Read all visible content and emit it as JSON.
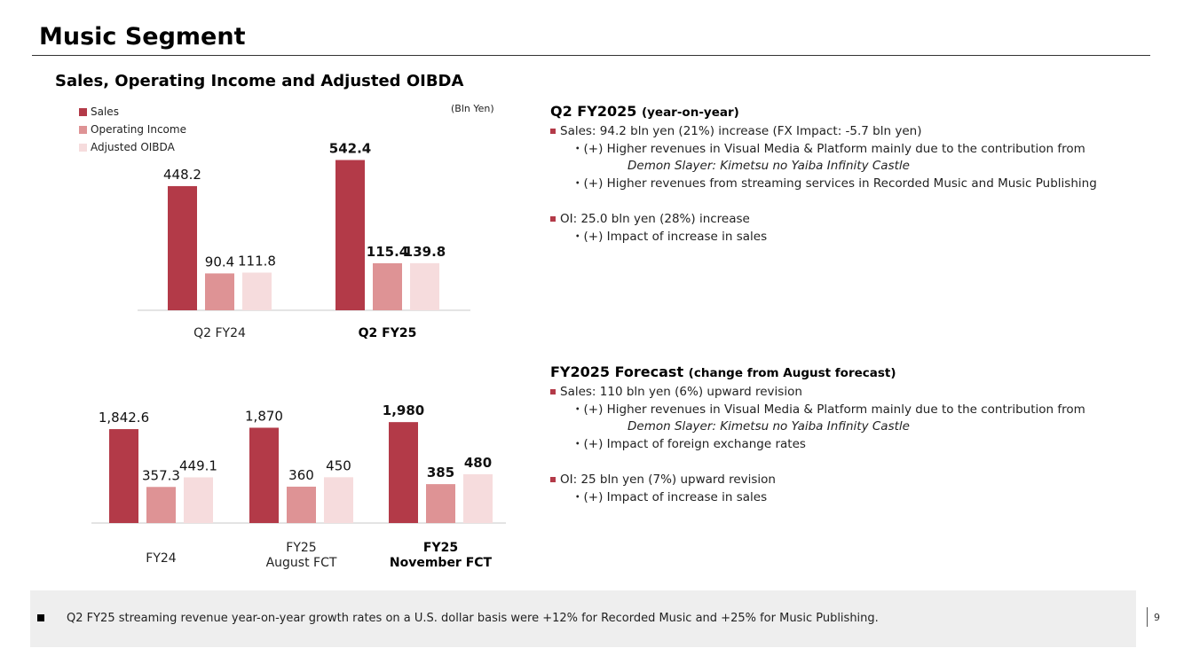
{
  "page": {
    "title": "Music Segment",
    "page_number": "9"
  },
  "chart_section": {
    "title": "Sales, Operating Income and Adjusted OIBDA",
    "unit": "(Bln Yen)",
    "legend": [
      "Sales",
      "Operating Income",
      "Adjusted OIBDA"
    ]
  },
  "chart_data": [
    {
      "type": "bar",
      "categories": [
        "Q2 FY24",
        "Q2 FY25"
      ],
      "series": [
        {
          "name": "Sales",
          "values": [
            448.2,
            542.4
          ],
          "labels": [
            "448.2",
            "542.4"
          ],
          "color": "#b33a48"
        },
        {
          "name": "Operating Income",
          "values": [
            90.4,
            115.4
          ],
          "labels": [
            "90.4",
            "115.4"
          ],
          "color": "#de9395"
        },
        {
          "name": "Adjusted OIBDA",
          "values": [
            111.8,
            139.8
          ],
          "labels": [
            "111.8",
            "139.8"
          ],
          "color": "#f6dcdd"
        }
      ],
      "highlight_category": "Q2 FY25"
    },
    {
      "type": "bar",
      "categories": [
        "FY24",
        "FY25\nAugust FCT",
        "FY25\nNovember FCT"
      ],
      "category_lines": [
        [
          "FY24"
        ],
        [
          "FY25",
          "August FCT"
        ],
        [
          "FY25",
          "November FCT"
        ]
      ],
      "series": [
        {
          "name": "Sales",
          "values": [
            1842.6,
            1870,
            1980
          ],
          "labels": [
            "1,842.6",
            "1,870",
            "1,980"
          ],
          "color": "#b33a48"
        },
        {
          "name": "Operating Income",
          "values": [
            357.3,
            360,
            385
          ],
          "labels": [
            "357.3",
            "360",
            "385"
          ],
          "color": "#de9395"
        },
        {
          "name": "Adjusted OIBDA",
          "values": [
            449.1,
            450,
            480
          ],
          "labels": [
            "449.1",
            "450",
            "480"
          ],
          "color": "#f6dcdd"
        }
      ],
      "highlight_category": "FY25\nNovember FCT"
    }
  ],
  "q2": {
    "heading": "Q2 FY2025",
    "heading_note": "(year-on-year)",
    "sales": "Sales: 94.2 bln yen (21%) increase (FX Impact: -5.7 bln yen)",
    "sales_sub1": "・(+) Higher revenues in Visual Media & Platform mainly due to the contribution from",
    "sales_sub1_italic": "Demon Slayer: Kimetsu no Yaiba Infinity Castle",
    "sales_sub2": "・(+) Higher revenues from streaming services in Recorded Music and Music Publishing",
    "oi": "OI: 25.0 bln yen (28%) increase",
    "oi_sub1": "・(+) Impact of increase in sales"
  },
  "forecast": {
    "heading": "FY2025 Forecast",
    "heading_note": "(change from August forecast)",
    "sales": "Sales: 110 bln yen (6%) upward revision",
    "sales_sub1": "・(+) Higher revenues in Visual Media & Platform mainly due to the contribution from",
    "sales_sub1_italic": "Demon Slayer: Kimetsu no Yaiba Infinity Castle",
    "sales_sub2": "・(+) Impact of foreign exchange rates",
    "oi": "OI: 25 bln yen (7%) upward revision",
    "oi_sub1": "・(+) Impact of increase in sales"
  },
  "footer_note": "Q2 FY25 streaming revenue year-on-year growth rates on a U.S. dollar basis were +12% for Recorded Music and +25% for Music Publishing."
}
